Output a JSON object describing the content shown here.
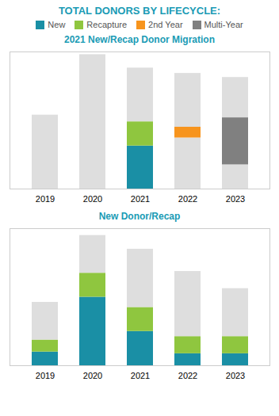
{
  "title": "TOTAL DONORS BY LIFECYCLE:",
  "chart_data": [
    {
      "type": "bar",
      "stacked": true,
      "title": "2021 New/Recap Donor Migration",
      "categories": [
        "2019",
        "2020",
        "2021",
        "2022",
        "2023"
      ],
      "series": [
        {
          "color": "#dedede",
          "values": [
            55,
            100,
            0,
            38,
            18
          ]
        },
        {
          "name": "New",
          "color": "#1a8fa5",
          "values": [
            0,
            0,
            32,
            0,
            0
          ]
        },
        {
          "name": "Recapture",
          "color": "#8fc63f",
          "values": [
            0,
            0,
            18,
            0,
            0
          ]
        },
        {
          "name": "2nd Year",
          "color": "#f7941d",
          "values": [
            0,
            0,
            0,
            8,
            0
          ]
        },
        {
          "name": "Multi-Year",
          "color": "#808080",
          "values": [
            0,
            0,
            0,
            0,
            35
          ]
        },
        {
          "color": "#dedede",
          "values": [
            0,
            0,
            40,
            40,
            30
          ]
        }
      ],
      "ylim": [
        0,
        102
      ],
      "tick_labels": "x",
      "grid": false,
      "legend": "top"
    },
    {
      "type": "bar",
      "stacked": true,
      "title": "New Donor/Recap",
      "categories": [
        "2019",
        "2020",
        "2021",
        "2022",
        "2023"
      ],
      "series": [
        {
          "name": "New",
          "color": "#1a8fa5",
          "values": [
            8,
            40,
            20,
            7,
            7
          ]
        },
        {
          "name": "Recapture",
          "color": "#8fc63f",
          "values": [
            7,
            14,
            14,
            10,
            10
          ]
        },
        {
          "color": "#dedede",
          "values": [
            22,
            22,
            34,
            38,
            28
          ]
        }
      ],
      "ylim": [
        0,
        80
      ],
      "tick_labels": "x",
      "grid": false
    }
  ]
}
